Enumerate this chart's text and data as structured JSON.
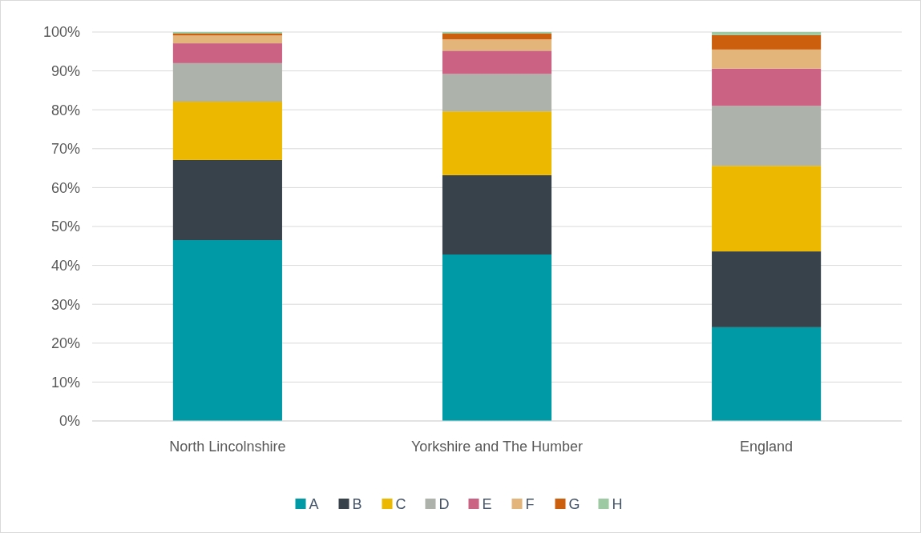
{
  "chart_data": {
    "type": "bar",
    "stacked": true,
    "categories": [
      "North Lincolnshire",
      "Yorkshire and The Humber",
      "England"
    ],
    "series": [
      {
        "name": "A",
        "color": "#0099a6",
        "values": [
          46.5,
          42.8,
          24.1
        ]
      },
      {
        "name": "B",
        "color": "#37424a",
        "values": [
          20.6,
          20.4,
          19.5
        ]
      },
      {
        "name": "C",
        "color": "#ecb800",
        "values": [
          15.0,
          16.4,
          22.0
        ]
      },
      {
        "name": "D",
        "color": "#adb2aa",
        "values": [
          9.9,
          9.6,
          15.4
        ]
      },
      {
        "name": "E",
        "color": "#cb6283",
        "values": [
          5.1,
          6.0,
          9.6
        ]
      },
      {
        "name": "F",
        "color": "#e4b57b",
        "values": [
          2.0,
          2.9,
          4.9
        ]
      },
      {
        "name": "G",
        "color": "#cc5f0d",
        "values": [
          0.5,
          1.5,
          3.7
        ]
      },
      {
        "name": "H",
        "color": "#9dcaa2",
        "values": [
          0.4,
          0.4,
          0.8
        ]
      }
    ],
    "ylim": [
      0,
      100
    ],
    "yticks": [
      {
        "value": 0,
        "label": "0%"
      },
      {
        "value": 10,
        "label": "10%"
      },
      {
        "value": 20,
        "label": "20%"
      },
      {
        "value": 30,
        "label": "30%"
      },
      {
        "value": 40,
        "label": "40%"
      },
      {
        "value": 50,
        "label": "50%"
      },
      {
        "value": 60,
        "label": "60%"
      },
      {
        "value": 70,
        "label": "70%"
      },
      {
        "value": 80,
        "label": "80%"
      },
      {
        "value": 90,
        "label": "90%"
      },
      {
        "value": 100,
        "label": "100%"
      }
    ],
    "grid": "y",
    "legend": "bottom"
  }
}
